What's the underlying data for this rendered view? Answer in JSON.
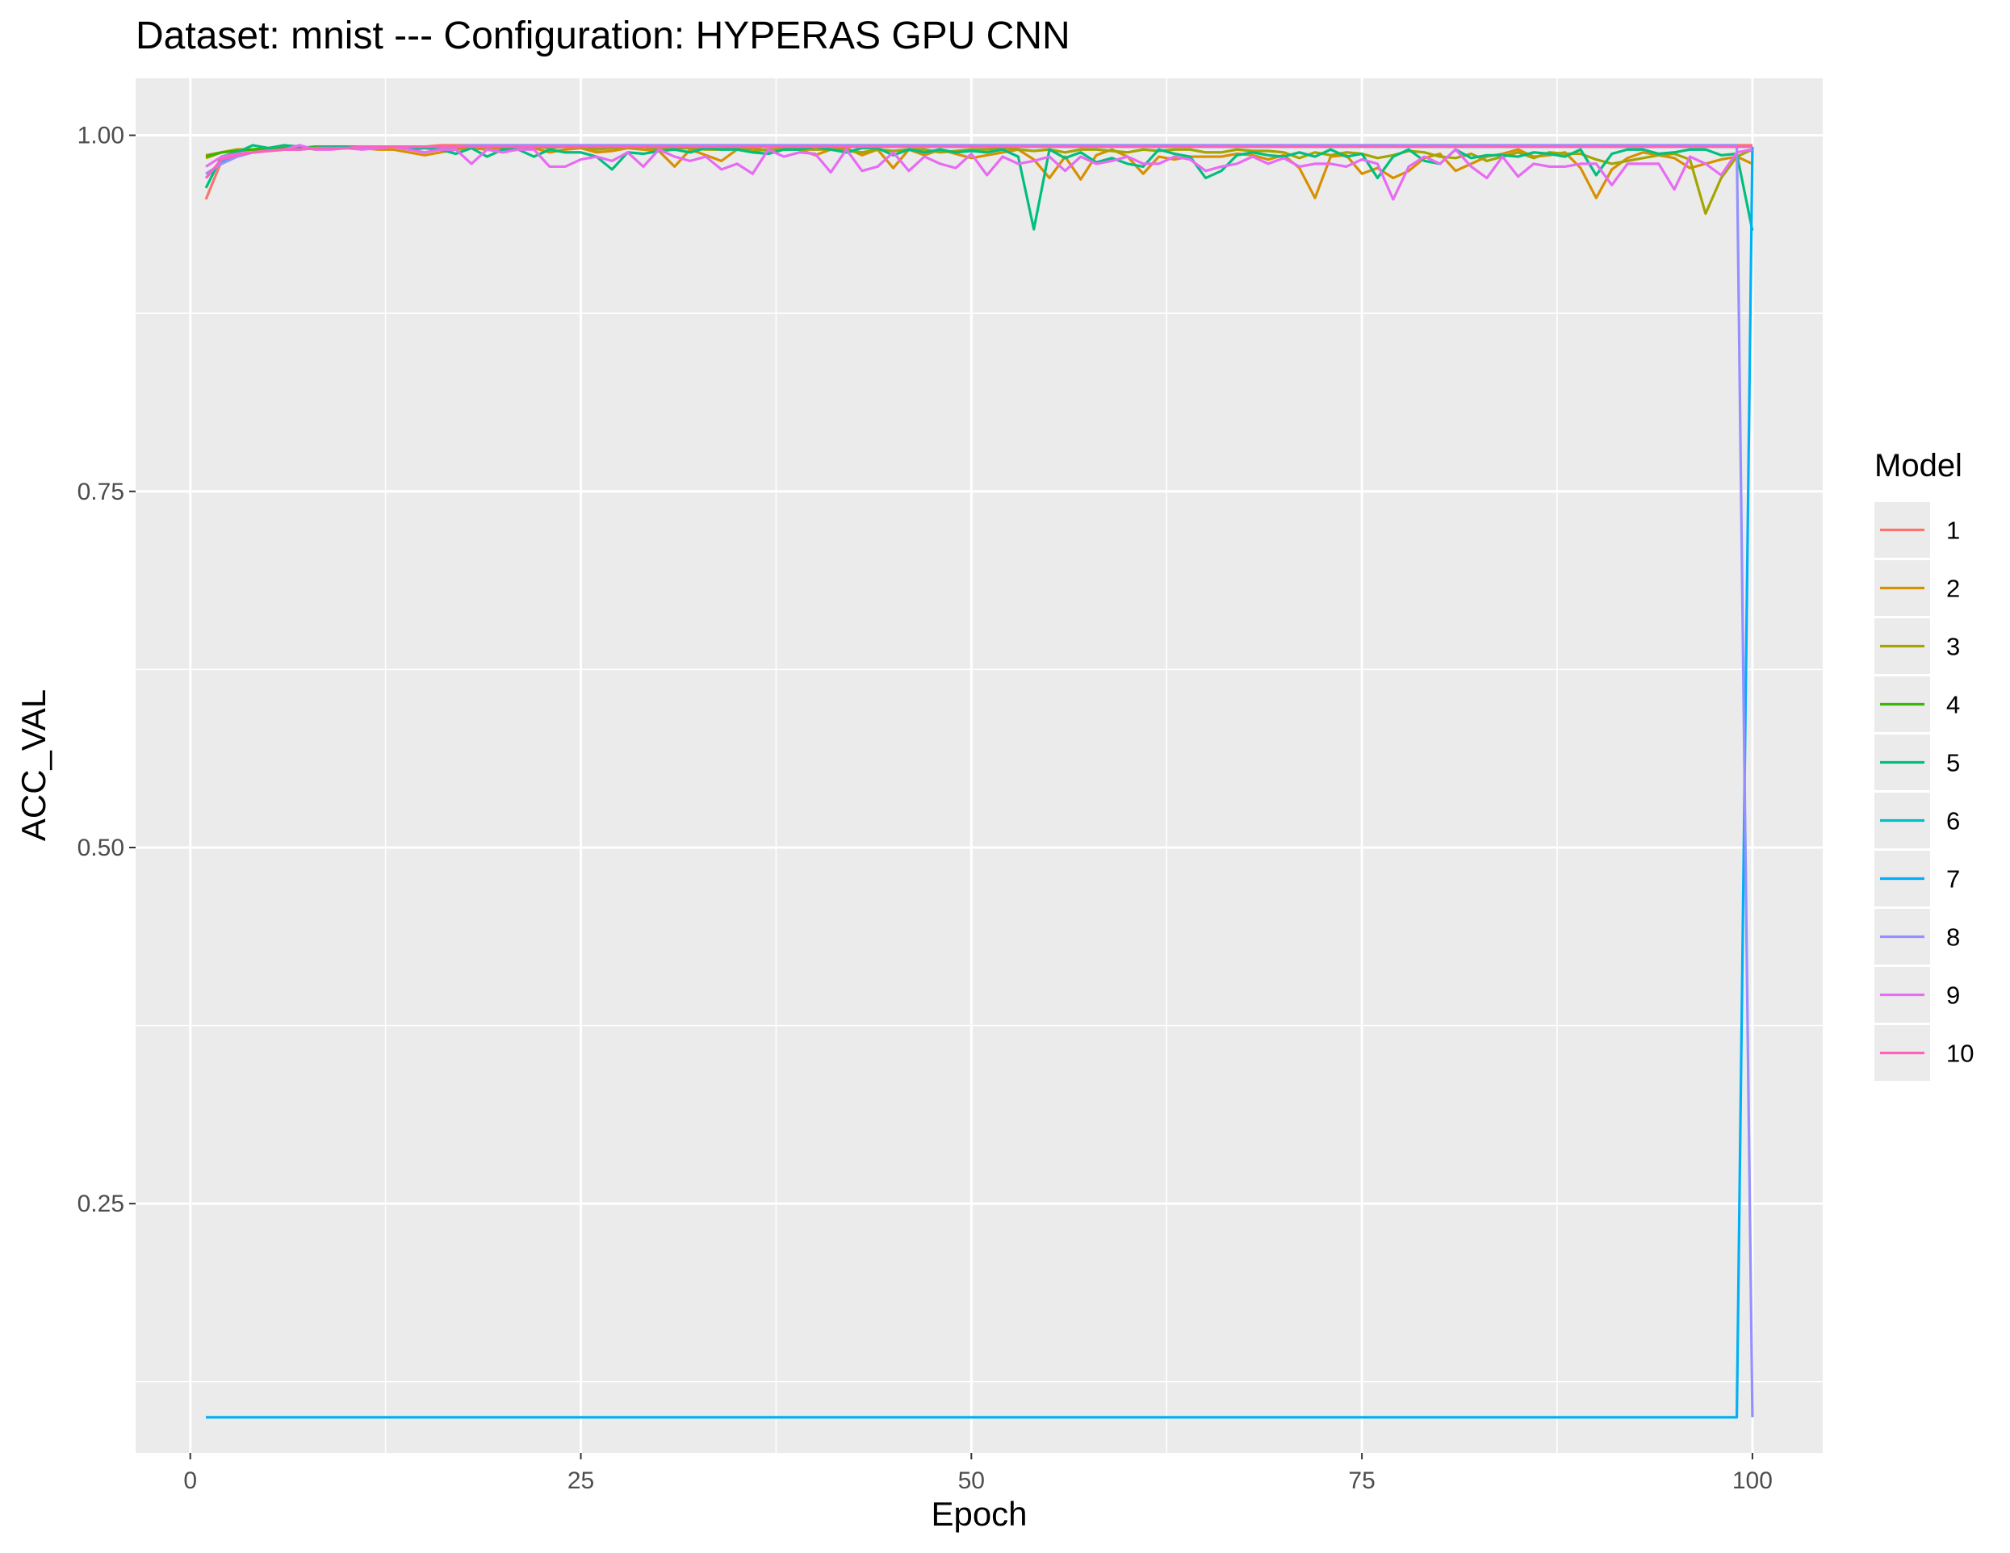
{
  "chart_data": {
    "type": "line",
    "title": "Dataset:  mnist  --- Configuration:  HYPERAS GPU CNN",
    "xlabel": "Epoch",
    "ylabel": "ACC_VAL",
    "xlim": [
      -3.5,
      104.5
    ],
    "ylim": [
      0.075,
      1.04
    ],
    "x_ticks": [
      0,
      25,
      50,
      75,
      100
    ],
    "x_tick_labels": [
      "0",
      "25",
      "50",
      "75",
      "100"
    ],
    "y_ticks": [
      0.25,
      0.5,
      0.75,
      1.0
    ],
    "y_tick_labels": [
      "0.25",
      "0.50",
      "0.75",
      "1.00"
    ],
    "grid": true,
    "background": "#ebebeb",
    "legend": {
      "title": "Model",
      "position": "right"
    },
    "x": [
      1,
      2,
      3,
      4,
      5,
      6,
      7,
      8,
      9,
      10,
      11,
      12,
      13,
      14,
      15,
      16,
      17,
      18,
      19,
      20,
      21,
      22,
      23,
      24,
      25,
      26,
      27,
      28,
      29,
      30,
      31,
      32,
      33,
      34,
      35,
      36,
      37,
      38,
      39,
      40,
      41,
      42,
      43,
      44,
      45,
      46,
      47,
      48,
      49,
      50,
      51,
      52,
      53,
      54,
      55,
      56,
      57,
      58,
      59,
      60,
      61,
      62,
      63,
      64,
      65,
      66,
      67,
      68,
      69,
      70,
      71,
      72,
      73,
      74,
      75,
      76,
      77,
      78,
      79,
      80,
      81,
      82,
      83,
      84,
      85,
      86,
      87,
      88,
      89,
      90,
      91,
      92,
      93,
      94,
      95,
      96,
      97,
      98,
      99,
      100
    ],
    "series": [
      {
        "name": "1",
        "color": "#F8766D",
        "values": [
          0.955,
          0.982,
          0.986,
          0.988,
          0.989,
          0.99,
          0.99,
          0.991,
          0.991,
          0.991,
          0.992,
          0.992,
          0.992,
          0.992,
          0.992,
          0.993,
          0.993,
          0.993,
          0.993,
          0.993,
          0.993,
          0.993,
          0.993,
          0.993,
          0.993,
          0.993,
          0.993,
          0.993,
          0.993,
          0.993,
          0.993,
          0.993,
          0.993,
          0.993,
          0.993,
          0.993,
          0.993,
          0.993,
          0.993,
          0.993,
          0.993,
          0.993,
          0.993,
          0.993,
          0.993,
          0.993,
          0.993,
          0.993,
          0.993,
          0.993,
          0.993,
          0.993,
          0.993,
          0.993,
          0.993,
          0.993,
          0.993,
          0.993,
          0.993,
          0.993,
          0.993,
          0.993,
          0.993,
          0.993,
          0.993,
          0.993,
          0.993,
          0.993,
          0.993,
          0.993,
          0.993,
          0.993,
          0.993,
          0.993,
          0.993,
          0.993,
          0.993,
          0.993,
          0.993,
          0.993,
          0.993,
          0.993,
          0.993,
          0.993,
          0.993,
          0.993,
          0.993,
          0.993,
          0.993,
          0.993,
          0.993,
          0.993,
          0.993,
          0.993,
          0.993,
          0.993,
          0.993,
          0.993,
          0.993,
          0.993
        ]
      },
      {
        "name": "2",
        "color": "#D89000",
        "values": [
          0.984,
          0.988,
          0.99,
          0.99,
          0.991,
          0.991,
          0.992,
          0.99,
          0.992,
          0.991,
          0.991,
          0.99,
          0.99,
          0.988,
          0.986,
          0.988,
          0.99,
          0.991,
          0.99,
          0.991,
          0.99,
          0.991,
          0.988,
          0.99,
          0.991,
          0.988,
          0.989,
          0.991,
          0.99,
          0.989,
          0.978,
          0.99,
          0.986,
          0.982,
          0.99,
          0.991,
          0.989,
          0.991,
          0.99,
          0.986,
          0.99,
          0.991,
          0.986,
          0.99,
          0.977,
          0.99,
          0.986,
          0.99,
          0.987,
          0.984,
          0.986,
          0.988,
          0.99,
          0.983,
          0.97,
          0.985,
          0.969,
          0.986,
          0.99,
          0.985,
          0.973,
          0.985,
          0.983,
          0.985,
          0.985,
          0.985,
          0.987,
          0.986,
          0.983,
          0.986,
          0.977,
          0.956,
          0.985,
          0.986,
          0.973,
          0.977,
          0.97,
          0.975,
          0.984,
          0.987,
          0.975,
          0.98,
          0.985,
          0.987,
          0.99,
          0.985,
          0.986,
          0.988,
          0.977,
          0.956,
          0.976,
          0.984,
          0.988,
          0.986,
          0.984,
          0.977,
          0.98,
          0.983,
          0.985,
          0.98
        ]
      },
      {
        "name": "3",
        "color": "#A3A500",
        "values": [
          0.986,
          0.988,
          0.99,
          0.99,
          0.991,
          0.992,
          0.991,
          0.992,
          0.992,
          0.992,
          0.991,
          0.992,
          0.992,
          0.992,
          0.991,
          0.991,
          0.992,
          0.992,
          0.992,
          0.992,
          0.992,
          0.992,
          0.991,
          0.992,
          0.992,
          0.99,
          0.991,
          0.992,
          0.992,
          0.99,
          0.991,
          0.991,
          0.99,
          0.99,
          0.991,
          0.989,
          0.99,
          0.99,
          0.99,
          0.99,
          0.99,
          0.989,
          0.988,
          0.99,
          0.989,
          0.99,
          0.99,
          0.988,
          0.989,
          0.99,
          0.99,
          0.991,
          0.99,
          0.989,
          0.99,
          0.988,
          0.99,
          0.99,
          0.989,
          0.988,
          0.99,
          0.989,
          0.99,
          0.99,
          0.988,
          0.988,
          0.99,
          0.989,
          0.989,
          0.988,
          0.984,
          0.988,
          0.986,
          0.988,
          0.987,
          0.984,
          0.986,
          0.989,
          0.988,
          0.985,
          0.984,
          0.987,
          0.982,
          0.985,
          0.988,
          0.984,
          0.988,
          0.987,
          0.987,
          0.983,
          0.98,
          0.982,
          0.984,
          0.986,
          0.987,
          0.983,
          0.945,
          0.97,
          0.985,
          0.99
        ]
      },
      {
        "name": "4",
        "color": "#39B600",
        "values": [
          0.985,
          0.988,
          0.989,
          0.99,
          0.991,
          0.991,
          0.991,
          0.992,
          0.992,
          0.992,
          0.992,
          0.992,
          0.992,
          0.992,
          0.992,
          0.992,
          0.992,
          0.992,
          0.992,
          0.992,
          0.992,
          0.992,
          0.992,
          0.992,
          0.992,
          0.992,
          0.992,
          0.992,
          0.992,
          0.992,
          0.992,
          0.992,
          0.992,
          0.992,
          0.992,
          0.992,
          0.992,
          0.992,
          0.992,
          0.992,
          0.992,
          0.992,
          0.992,
          0.992,
          0.992,
          0.992,
          0.992,
          0.992,
          0.992,
          0.992,
          0.992,
          0.992,
          0.992,
          0.992,
          0.992,
          0.992,
          0.992,
          0.992,
          0.992,
          0.992,
          0.992,
          0.992,
          0.992,
          0.992,
          0.992,
          0.992,
          0.992,
          0.992,
          0.992,
          0.992,
          0.992,
          0.992,
          0.992,
          0.992,
          0.992,
          0.992,
          0.992,
          0.992,
          0.992,
          0.992,
          0.992,
          0.992,
          0.992,
          0.992,
          0.992,
          0.992,
          0.992,
          0.992,
          0.992,
          0.992,
          0.992,
          0.992,
          0.992,
          0.992,
          0.992,
          0.992,
          0.992,
          0.992,
          0.992,
          0.992
        ]
      },
      {
        "name": "5",
        "color": "#00BF7D",
        "values": [
          0.963,
          0.985,
          0.988,
          0.993,
          0.991,
          0.993,
          0.992,
          0.991,
          0.992,
          0.992,
          0.991,
          0.992,
          0.992,
          0.99,
          0.991,
          0.99,
          0.987,
          0.991,
          0.985,
          0.99,
          0.99,
          0.985,
          0.99,
          0.988,
          0.988,
          0.985,
          0.976,
          0.988,
          0.987,
          0.989,
          0.99,
          0.988,
          0.991,
          0.99,
          0.99,
          0.988,
          0.987,
          0.99,
          0.99,
          0.992,
          0.99,
          0.988,
          0.991,
          0.991,
          0.986,
          0.99,
          0.988,
          0.99,
          0.988,
          0.989,
          0.988,
          0.99,
          0.985,
          0.934,
          0.99,
          0.984,
          0.988,
          0.981,
          0.984,
          0.98,
          0.978,
          0.99,
          0.987,
          0.985,
          0.97,
          0.975,
          0.986,
          0.988,
          0.986,
          0.985,
          0.988,
          0.985,
          0.99,
          0.985,
          0.987,
          0.97,
          0.985,
          0.99,
          0.982,
          0.98,
          0.99,
          0.984,
          0.986,
          0.986,
          0.985,
          0.988,
          0.987,
          0.985,
          0.99,
          0.972,
          0.987,
          0.99,
          0.99,
          0.987,
          0.988,
          0.99,
          0.99,
          0.986,
          0.987,
          0.933
        ]
      },
      {
        "name": "6",
        "color": "#00BFC4",
        "values": [
          0.97,
          0.982,
          0.986,
          0.988,
          0.989,
          0.99,
          0.99,
          0.991,
          0.991,
          0.991,
          0.992,
          0.992,
          0.992,
          0.992,
          0.992,
          0.992,
          0.992,
          0.992,
          0.992,
          0.992,
          0.992,
          0.992,
          0.992,
          0.992,
          0.992,
          0.992,
          0.992,
          0.992,
          0.992,
          0.992,
          0.992,
          0.992,
          0.992,
          0.992,
          0.992,
          0.992,
          0.992,
          0.992,
          0.992,
          0.992,
          0.992,
          0.992,
          0.992,
          0.992,
          0.992,
          0.992,
          0.992,
          0.992,
          0.992,
          0.992,
          0.992,
          0.992,
          0.992,
          0.992,
          0.992,
          0.992,
          0.992,
          0.992,
          0.992,
          0.992,
          0.992,
          0.992,
          0.992,
          0.992,
          0.992,
          0.992,
          0.992,
          0.992,
          0.992,
          0.992,
          0.992,
          0.992,
          0.992,
          0.992,
          0.992,
          0.992,
          0.992,
          0.992,
          0.992,
          0.992,
          0.992,
          0.992,
          0.992,
          0.992,
          0.992,
          0.992,
          0.992,
          0.992,
          0.992,
          0.992,
          0.992,
          0.992,
          0.992,
          0.992,
          0.992,
          0.992,
          0.992,
          0.992,
          0.992,
          0.992
        ]
      },
      {
        "name": "7",
        "color": "#00B0F6",
        "values": [
          0.1,
          0.1,
          0.1,
          0.1,
          0.1,
          0.1,
          0.1,
          0.1,
          0.1,
          0.1,
          0.1,
          0.1,
          0.1,
          0.1,
          0.1,
          0.1,
          0.1,
          0.1,
          0.1,
          0.1,
          0.1,
          0.1,
          0.1,
          0.1,
          0.1,
          0.1,
          0.1,
          0.1,
          0.1,
          0.1,
          0.1,
          0.1,
          0.1,
          0.1,
          0.1,
          0.1,
          0.1,
          0.1,
          0.1,
          0.1,
          0.1,
          0.1,
          0.1,
          0.1,
          0.1,
          0.1,
          0.1,
          0.1,
          0.1,
          0.1,
          0.1,
          0.1,
          0.1,
          0.1,
          0.1,
          0.1,
          0.1,
          0.1,
          0.1,
          0.1,
          0.1,
          0.1,
          0.1,
          0.1,
          0.1,
          0.1,
          0.1,
          0.1,
          0.1,
          0.1,
          0.1,
          0.1,
          0.1,
          0.1,
          0.1,
          0.1,
          0.1,
          0.1,
          0.1,
          0.1,
          0.1,
          0.1,
          0.1,
          0.1,
          0.1,
          0.1,
          0.1,
          0.1,
          0.1,
          0.1,
          0.1,
          0.1,
          0.1,
          0.1,
          0.1,
          0.1,
          0.1,
          0.1,
          0.1,
          0.992
        ]
      },
      {
        "name": "8",
        "color": "#9590FF",
        "values": [
          0.973,
          0.98,
          0.985,
          0.988,
          0.989,
          0.99,
          0.99,
          0.991,
          0.991,
          0.991,
          0.992,
          0.992,
          0.992,
          0.992,
          0.992,
          0.992,
          0.992,
          0.993,
          0.993,
          0.993,
          0.993,
          0.993,
          0.993,
          0.993,
          0.993,
          0.993,
          0.993,
          0.993,
          0.993,
          0.993,
          0.993,
          0.993,
          0.993,
          0.993,
          0.993,
          0.993,
          0.993,
          0.993,
          0.993,
          0.993,
          0.993,
          0.993,
          0.993,
          0.993,
          0.993,
          0.993,
          0.993,
          0.993,
          0.993,
          0.993,
          0.993,
          0.993,
          0.993,
          0.993,
          0.993,
          0.993,
          0.993,
          0.993,
          0.993,
          0.993,
          0.993,
          0.993,
          0.993,
          0.993,
          0.993,
          0.993,
          0.993,
          0.993,
          0.993,
          0.993,
          0.993,
          0.993,
          0.993,
          0.993,
          0.993,
          0.993,
          0.993,
          0.993,
          0.993,
          0.993,
          0.993,
          0.993,
          0.993,
          0.993,
          0.993,
          0.993,
          0.993,
          0.993,
          0.993,
          0.993,
          0.993,
          0.993,
          0.993,
          0.993,
          0.993,
          0.993,
          0.993,
          0.993,
          0.993,
          0.1
        ]
      },
      {
        "name": "9",
        "color": "#E76BF3",
        "values": [
          0.978,
          0.985,
          0.987,
          0.988,
          0.989,
          0.99,
          0.993,
          0.99,
          0.99,
          0.991,
          0.99,
          0.991,
          0.992,
          0.99,
          0.988,
          0.99,
          0.99,
          0.98,
          0.99,
          0.988,
          0.99,
          0.99,
          0.978,
          0.978,
          0.983,
          0.985,
          0.982,
          0.988,
          0.978,
          0.99,
          0.985,
          0.982,
          0.985,
          0.976,
          0.98,
          0.973,
          0.99,
          0.985,
          0.988,
          0.987,
          0.974,
          0.99,
          0.975,
          0.978,
          0.988,
          0.975,
          0.985,
          0.98,
          0.977,
          0.987,
          0.972,
          0.985,
          0.98,
          0.982,
          0.985,
          0.975,
          0.985,
          0.98,
          0.982,
          0.985,
          0.98,
          0.98,
          0.985,
          0.983,
          0.975,
          0.978,
          0.98,
          0.985,
          0.98,
          0.984,
          0.978,
          0.98,
          0.98,
          0.978,
          0.983,
          0.98,
          0.955,
          0.978,
          0.985,
          0.98,
          0.99,
          0.978,
          0.97,
          0.985,
          0.971,
          0.98,
          0.978,
          0.978,
          0.98,
          0.98,
          0.965,
          0.98,
          0.98,
          0.98,
          0.962,
          0.985,
          0.98,
          0.972,
          0.988,
          0.99
        ]
      },
      {
        "name": "10",
        "color": "#FF62BC",
        "values": [
          0.97,
          0.983,
          0.986,
          0.988,
          0.989,
          0.99,
          0.99,
          0.991,
          0.991,
          0.991,
          0.992,
          0.992,
          0.992,
          0.992,
          0.992,
          0.992,
          0.992,
          0.992,
          0.992,
          0.992,
          0.992,
          0.992,
          0.992,
          0.992,
          0.992,
          0.992,
          0.992,
          0.992,
          0.992,
          0.992,
          0.992,
          0.992,
          0.992,
          0.992,
          0.992,
          0.992,
          0.992,
          0.992,
          0.992,
          0.992,
          0.992,
          0.992,
          0.992,
          0.992,
          0.992,
          0.992,
          0.992,
          0.992,
          0.992,
          0.992,
          0.992,
          0.992,
          0.992,
          0.992,
          0.992,
          0.992,
          0.992,
          0.992,
          0.992,
          0.992,
          0.992,
          0.992,
          0.992,
          0.992,
          0.992,
          0.992,
          0.992,
          0.992,
          0.992,
          0.992,
          0.992,
          0.992,
          0.992,
          0.992,
          0.992,
          0.992,
          0.992,
          0.992,
          0.992,
          0.992,
          0.992,
          0.992,
          0.992,
          0.992,
          0.992,
          0.992,
          0.992,
          0.992,
          0.992,
          0.992,
          0.992,
          0.992,
          0.992,
          0.992,
          0.992,
          0.992,
          0.992,
          0.992,
          0.992,
          0.992
        ]
      }
    ]
  }
}
